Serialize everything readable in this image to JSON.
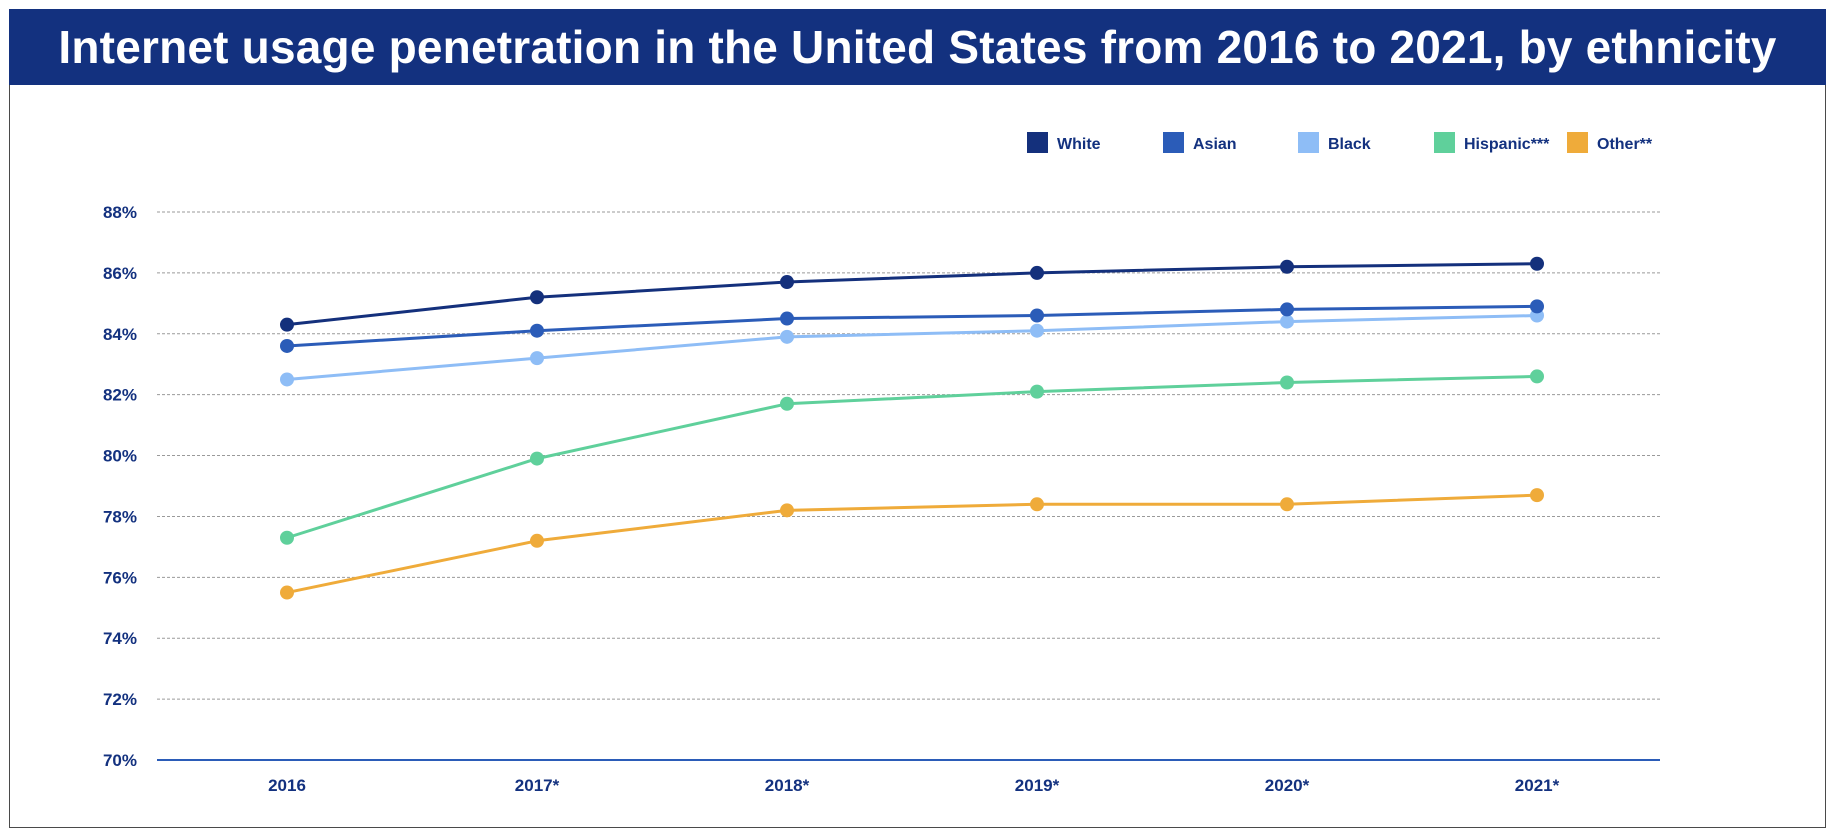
{
  "title": "Internet usage penetration in the United States from 2016 to 2021, by ethnicity",
  "chart_data": {
    "type": "line",
    "categories": [
      "2016",
      "2017*",
      "2018*",
      "2019*",
      "2020*",
      "2021*"
    ],
    "ylim": [
      70,
      88
    ],
    "yticks": [
      70,
      72,
      74,
      76,
      78,
      80,
      82,
      84,
      86,
      88
    ],
    "ytick_labels": [
      "70%",
      "72%",
      "74%",
      "76%",
      "78%",
      "80%",
      "82%",
      "84%",
      "86%",
      "88%"
    ],
    "grid": true,
    "legend_position": "top-right",
    "series": [
      {
        "name": "White",
        "color": "#14307c",
        "values": [
          84.3,
          85.2,
          85.7,
          86.0,
          86.2,
          86.3
        ]
      },
      {
        "name": "Asian",
        "color": "#2b5cb8",
        "values": [
          83.6,
          84.1,
          84.5,
          84.6,
          84.8,
          84.9
        ]
      },
      {
        "name": "Black",
        "color": "#8ebdf6",
        "values": [
          82.5,
          83.2,
          83.9,
          84.1,
          84.4,
          84.6
        ]
      },
      {
        "name": "Hispanic***",
        "color": "#5fd09b",
        "values": [
          77.3,
          79.9,
          81.7,
          82.1,
          82.4,
          82.6
        ]
      },
      {
        "name": "Other**",
        "color": "#efab3a",
        "values": [
          75.5,
          77.2,
          78.2,
          78.4,
          78.4,
          78.7
        ]
      }
    ]
  }
}
